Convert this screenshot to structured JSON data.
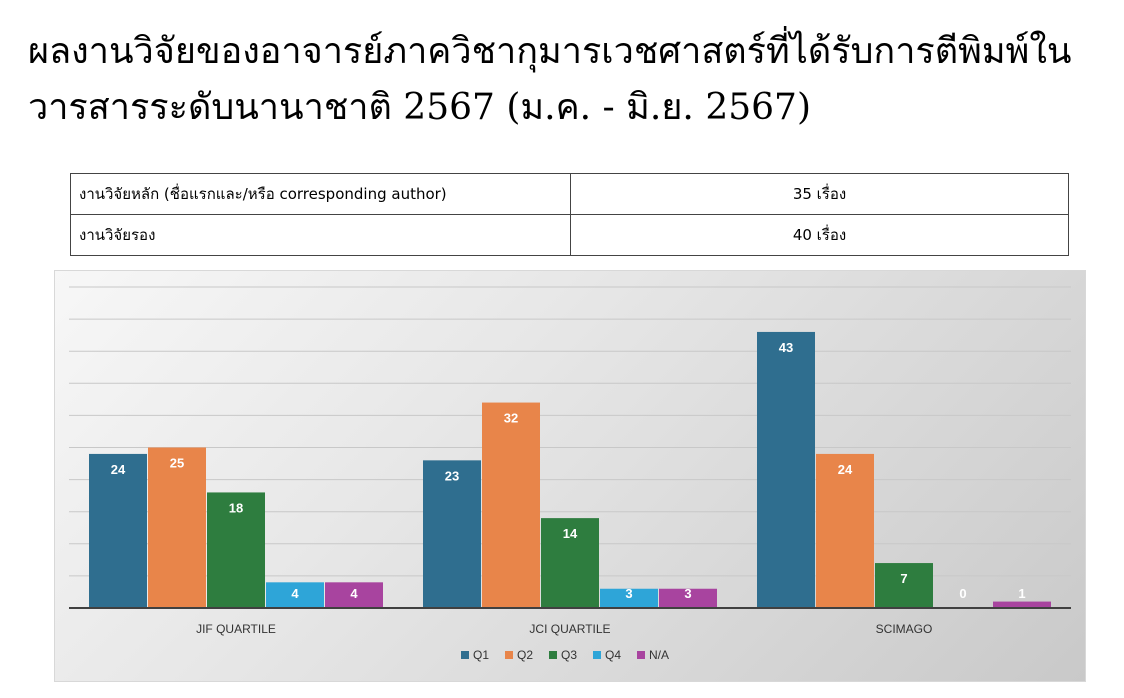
{
  "title": {
    "line1": "ผลงานวิจัยของอาจารย์ภาควิชากุมารเวชศาสตร์ที่ได้รับการตีพิมพ์ใน",
    "line2": "วารสารระดับนานาชาติ 2567 (ม.ค. - มิ.ย. 2567)"
  },
  "summary": {
    "rows": [
      {
        "label": "งานวิจัยหลัก (ชื่อแรกและ/หรือ corresponding author)",
        "value": "35 เรื่อง"
      },
      {
        "label": "งานวิจัยรอง",
        "value": "40 เรื่อง"
      }
    ]
  },
  "chart_data": {
    "type": "bar",
    "categories": [
      "JIF QUARTILE",
      "JCI QUARTILE",
      "SCIMAGO"
    ],
    "series": [
      {
        "name": "Q1",
        "color": "#2f6e8f",
        "values": [
          24,
          23,
          43
        ]
      },
      {
        "name": "Q2",
        "color": "#e8854a",
        "values": [
          25,
          32,
          24
        ]
      },
      {
        "name": "Q3",
        "color": "#2e7d3f",
        "values": [
          18,
          14,
          7
        ]
      },
      {
        "name": "Q4",
        "color": "#2ea5d8",
        "values": [
          4,
          3,
          0
        ]
      },
      {
        "name": "N/A",
        "color": "#a8449f",
        "values": [
          4,
          3,
          1
        ]
      }
    ],
    "ylim": [
      0,
      50
    ],
    "grid": true,
    "legend": "bottom",
    "data_labels": true
  }
}
